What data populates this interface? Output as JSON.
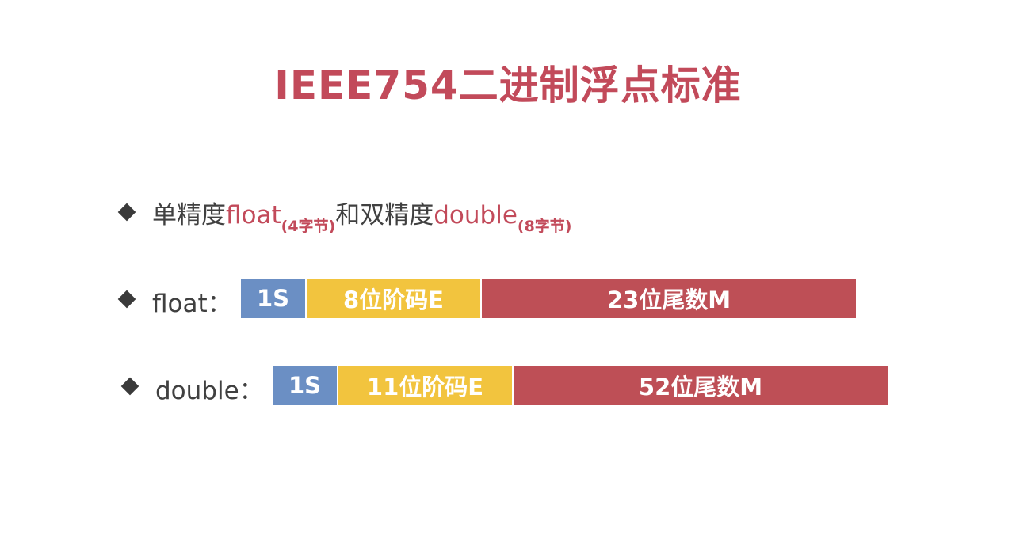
{
  "title": "IEEE754二进制浮点标准",
  "intro": {
    "single": "单精度",
    "float": "float",
    "float_size": "(4字节)",
    "and_double": "和双精度",
    "double": "double",
    "double_size": "(8字节)"
  },
  "float_row": {
    "label": "float：",
    "segments": [
      "1S",
      "8位阶码E",
      "23位尾数M"
    ]
  },
  "double_row": {
    "label": "double：",
    "segments": [
      "1S",
      "11位阶码E",
      "52位尾数M"
    ]
  }
}
